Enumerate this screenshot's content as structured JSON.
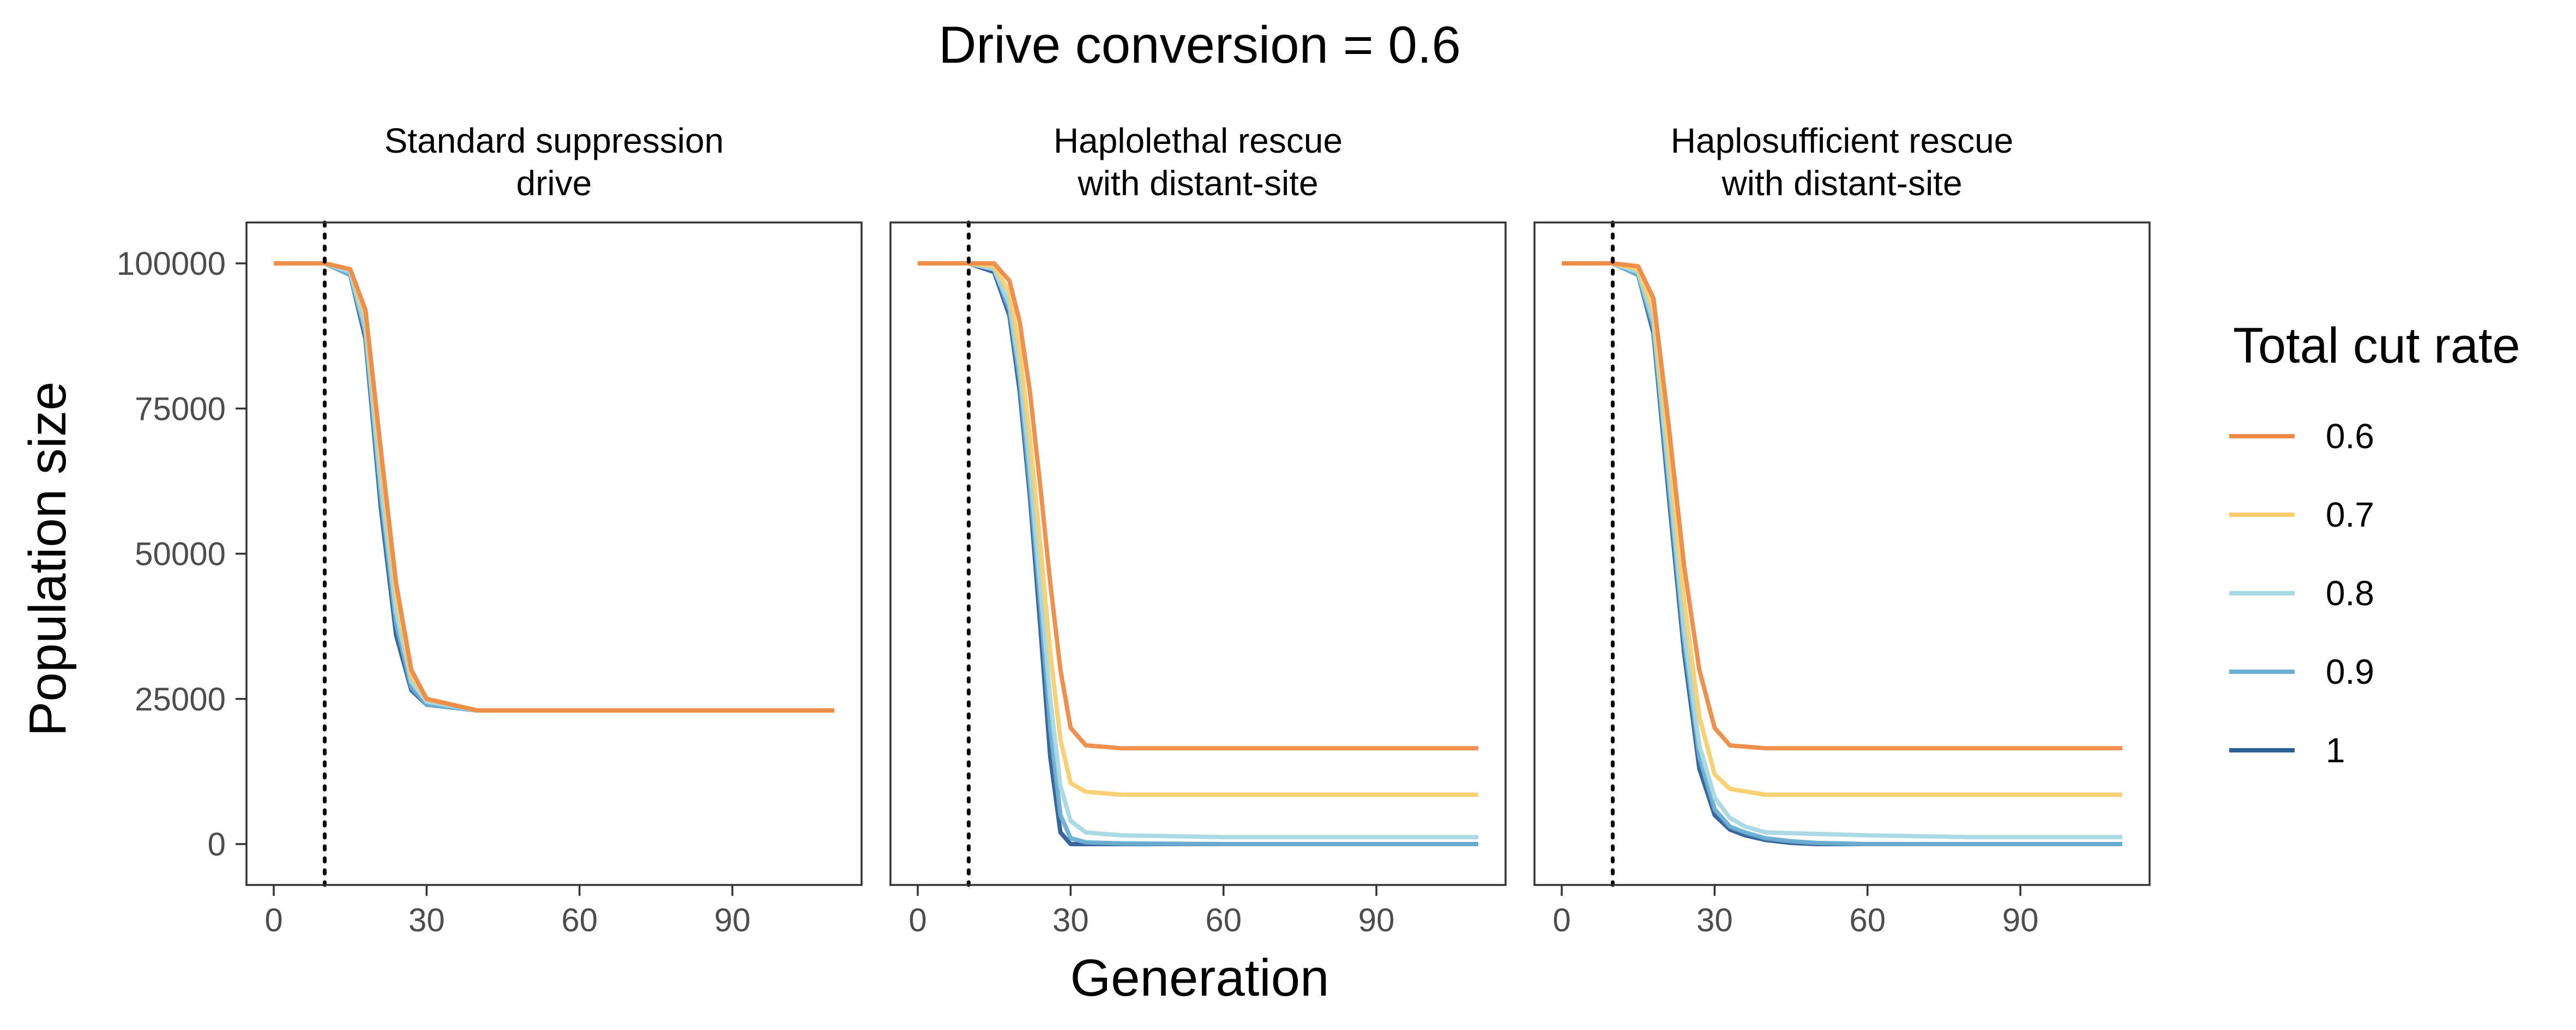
{
  "title": "Drive conversion = 0.6",
  "xlabel": "Generation",
  "ylabel": "Population size",
  "legend": {
    "title": "Total cut rate",
    "entries": [
      {
        "label": "0.6",
        "color": "#EE8A45"
      },
      {
        "label": "0.7",
        "color": "#F7CF6D"
      },
      {
        "label": "0.8",
        "color": "#A6D8E3"
      },
      {
        "label": "0.9",
        "color": "#6AAED3"
      },
      {
        "label": "1",
        "color": "#2E5F96"
      }
    ]
  },
  "chart_data": [
    {
      "type": "line",
      "panel_title": [
        "Standard suppression",
        "drive"
      ],
      "xlim": [
        0,
        110
      ],
      "ylim": [
        0,
        100000
      ],
      "x_ticks": [
        "0",
        "30",
        "60",
        "90"
      ],
      "y_ticks": [
        "0",
        "25000",
        "50000",
        "75000",
        "100000"
      ],
      "release_generation": 10,
      "series": [
        {
          "name": "0.6",
          "x": [
            0,
            10,
            15,
            18,
            21,
            24,
            27,
            30,
            40,
            60,
            80,
            110
          ],
          "y": [
            100000,
            100000,
            99000,
            92000,
            68000,
            45000,
            30000,
            25000,
            23000,
            23000,
            23000,
            23000
          ]
        },
        {
          "name": "0.7",
          "x": [
            0,
            10,
            15,
            18,
            21,
            24,
            27,
            30,
            40,
            60,
            80,
            110
          ],
          "y": [
            100000,
            100000,
            99000,
            91000,
            66000,
            43000,
            29000,
            25000,
            23000,
            23000,
            23000,
            23000
          ]
        },
        {
          "name": "0.8",
          "x": [
            0,
            10,
            15,
            18,
            21,
            24,
            27,
            30,
            40,
            60,
            80,
            110
          ],
          "y": [
            100000,
            100000,
            98500,
            89000,
            62000,
            40000,
            28000,
            24500,
            23000,
            23000,
            23000,
            23000
          ]
        },
        {
          "name": "0.9",
          "x": [
            0,
            10,
            15,
            18,
            21,
            24,
            27,
            30,
            40,
            60,
            80,
            110
          ],
          "y": [
            100000,
            100000,
            98000,
            88000,
            60000,
            38000,
            27000,
            24000,
            23000,
            23000,
            23000,
            23000
          ]
        },
        {
          "name": "1",
          "x": [
            0,
            10,
            15,
            18,
            21,
            24,
            27,
            30,
            40,
            60,
            80,
            110
          ],
          "y": [
            100000,
            100000,
            98000,
            87000,
            58000,
            36000,
            26500,
            24000,
            23000,
            23000,
            23000,
            23000
          ]
        }
      ]
    },
    {
      "type": "line",
      "panel_title": [
        "Haplolethal rescue",
        "with distant-site"
      ],
      "xlim": [
        0,
        110
      ],
      "ylim": [
        0,
        100000
      ],
      "x_ticks": [
        "0",
        "30",
        "60",
        "90"
      ],
      "y_ticks": [
        "0",
        "25000",
        "50000",
        "75000",
        "100000"
      ],
      "release_generation": 10,
      "series": [
        {
          "name": "0.6",
          "x": [
            0,
            10,
            15,
            18,
            20,
            22,
            24,
            26,
            28,
            30,
            33,
            40,
            60,
            80,
            110
          ],
          "y": [
            100000,
            100000,
            100000,
            97000,
            90000,
            78000,
            62000,
            45000,
            30000,
            20000,
            17000,
            16500,
            16500,
            16500,
            16500
          ]
        },
        {
          "name": "0.7",
          "x": [
            0,
            10,
            15,
            18,
            20,
            22,
            24,
            26,
            28,
            30,
            33,
            40,
            60,
            80,
            110
          ],
          "y": [
            100000,
            100000,
            99500,
            95000,
            85000,
            70000,
            52000,
            33000,
            18000,
            10500,
            9000,
            8500,
            8500,
            8500,
            8500
          ]
        },
        {
          "name": "0.8",
          "x": [
            0,
            10,
            15,
            18,
            20,
            22,
            24,
            26,
            28,
            30,
            33,
            40,
            60,
            80,
            110
          ],
          "y": [
            100000,
            100000,
            99000,
            93000,
            82000,
            65000,
            45000,
            25000,
            10000,
            4000,
            2000,
            1500,
            1200,
            1200,
            1200
          ]
        },
        {
          "name": "0.9",
          "x": [
            0,
            10,
            15,
            18,
            20,
            22,
            24,
            26,
            28,
            30,
            33,
            40,
            60,
            80,
            110
          ],
          "y": [
            100000,
            100000,
            99000,
            92000,
            80000,
            62000,
            42000,
            20000,
            5000,
            1000,
            300,
            100,
            0,
            0,
            0
          ]
        },
        {
          "name": "1",
          "x": [
            0,
            10,
            15,
            18,
            20,
            22,
            24,
            26,
            28,
            30,
            40,
            60,
            80,
            110
          ],
          "y": [
            100000,
            100000,
            98500,
            91000,
            78000,
            60000,
            38000,
            15000,
            2000,
            0,
            0,
            0,
            0,
            0
          ]
        }
      ]
    },
    {
      "type": "line",
      "panel_title": [
        "Haplosufficient rescue",
        "with distant-site"
      ],
      "xlim": [
        0,
        110
      ],
      "ylim": [
        0,
        100000
      ],
      "x_ticks": [
        "0",
        "30",
        "60",
        "90"
      ],
      "y_ticks": [
        "0",
        "25000",
        "50000",
        "75000",
        "100000"
      ],
      "release_generation": 10,
      "series": [
        {
          "name": "0.6",
          "x": [
            0,
            10,
            15,
            18,
            21,
            24,
            27,
            30,
            33,
            40,
            60,
            80,
            110
          ],
          "y": [
            100000,
            100000,
            99500,
            94000,
            72000,
            48000,
            30000,
            20000,
            17000,
            16500,
            16500,
            16500,
            16500
          ]
        },
        {
          "name": "0.7",
          "x": [
            0,
            10,
            15,
            18,
            21,
            24,
            27,
            30,
            33,
            40,
            60,
            80,
            110
          ],
          "y": [
            100000,
            100000,
            99000,
            92000,
            68000,
            42000,
            22000,
            12000,
            9500,
            8500,
            8500,
            8500,
            8500
          ]
        },
        {
          "name": "0.8",
          "x": [
            0,
            10,
            15,
            18,
            21,
            24,
            27,
            30,
            33,
            36,
            40,
            60,
            80,
            110
          ],
          "y": [
            100000,
            100000,
            98500,
            90000,
            64000,
            37000,
            17000,
            8000,
            4500,
            3000,
            2000,
            1500,
            1200,
            1200
          ]
        },
        {
          "name": "0.9",
          "x": [
            0,
            10,
            15,
            18,
            21,
            24,
            27,
            30,
            33,
            36,
            40,
            45,
            50,
            60,
            80,
            110
          ],
          "y": [
            100000,
            100000,
            98000,
            89000,
            62000,
            35000,
            15000,
            6000,
            3000,
            2000,
            1000,
            500,
            200,
            0,
            0,
            0
          ]
        },
        {
          "name": "1",
          "x": [
            0,
            10,
            15,
            18,
            21,
            24,
            27,
            30,
            33,
            36,
            40,
            45,
            50,
            60,
            80,
            110
          ],
          "y": [
            100000,
            100000,
            98000,
            88000,
            60000,
            33000,
            13000,
            5000,
            2500,
            1500,
            700,
            200,
            0,
            0,
            0,
            0
          ]
        }
      ]
    }
  ]
}
